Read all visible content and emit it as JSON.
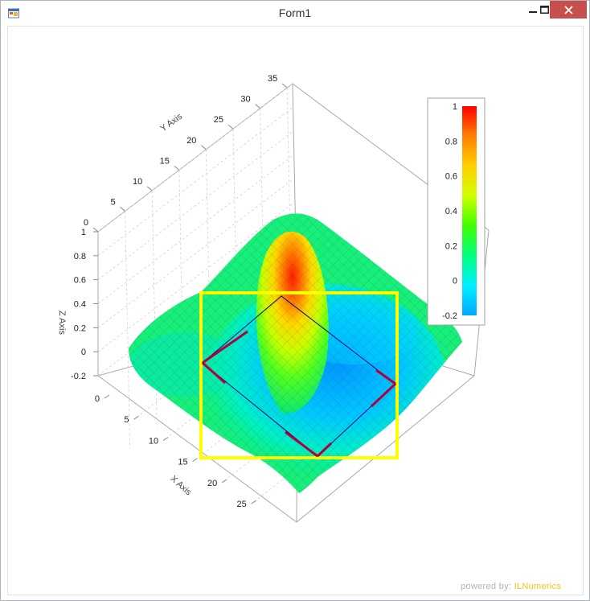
{
  "window": {
    "title": "Form1",
    "minimize_icon": "minimize-icon",
    "maximize_icon": "maximize-icon",
    "close_icon": "close-icon"
  },
  "chart_data": {
    "type": "surface",
    "xlabel": "X Axis",
    "ylabel": "Y Axis",
    "zlabel": "Z Axis",
    "x_ticks": [
      "0",
      "5",
      "10",
      "15",
      "20",
      "25"
    ],
    "y_ticks": [
      "0",
      "5",
      "10",
      "15",
      "20",
      "25",
      "30",
      "35"
    ],
    "z_ticks": [
      "1",
      "0.8",
      "0.6",
      "0.4",
      "0.2",
      "0",
      "-0.2"
    ],
    "xlim": [
      0,
      29
    ],
    "ylim": [
      0,
      36
    ],
    "zlim": [
      -0.2,
      1
    ],
    "colorbar": {
      "ticks": [
        "1",
        "0.8",
        "0.6",
        "0.4",
        "0.2",
        "0",
        "-0.2"
      ],
      "colors": [
        "#00a8ff",
        "#00f0ff",
        "#00ff80",
        "#40ff00",
        "#d0ff00",
        "#ffd000",
        "#ff8000",
        "#ff0000"
      ]
    },
    "selection_color": "#ffff00",
    "handle_color": "#b3003c"
  },
  "footer": {
    "powered_label": "powered by:",
    "brand": "ILNumerics"
  }
}
